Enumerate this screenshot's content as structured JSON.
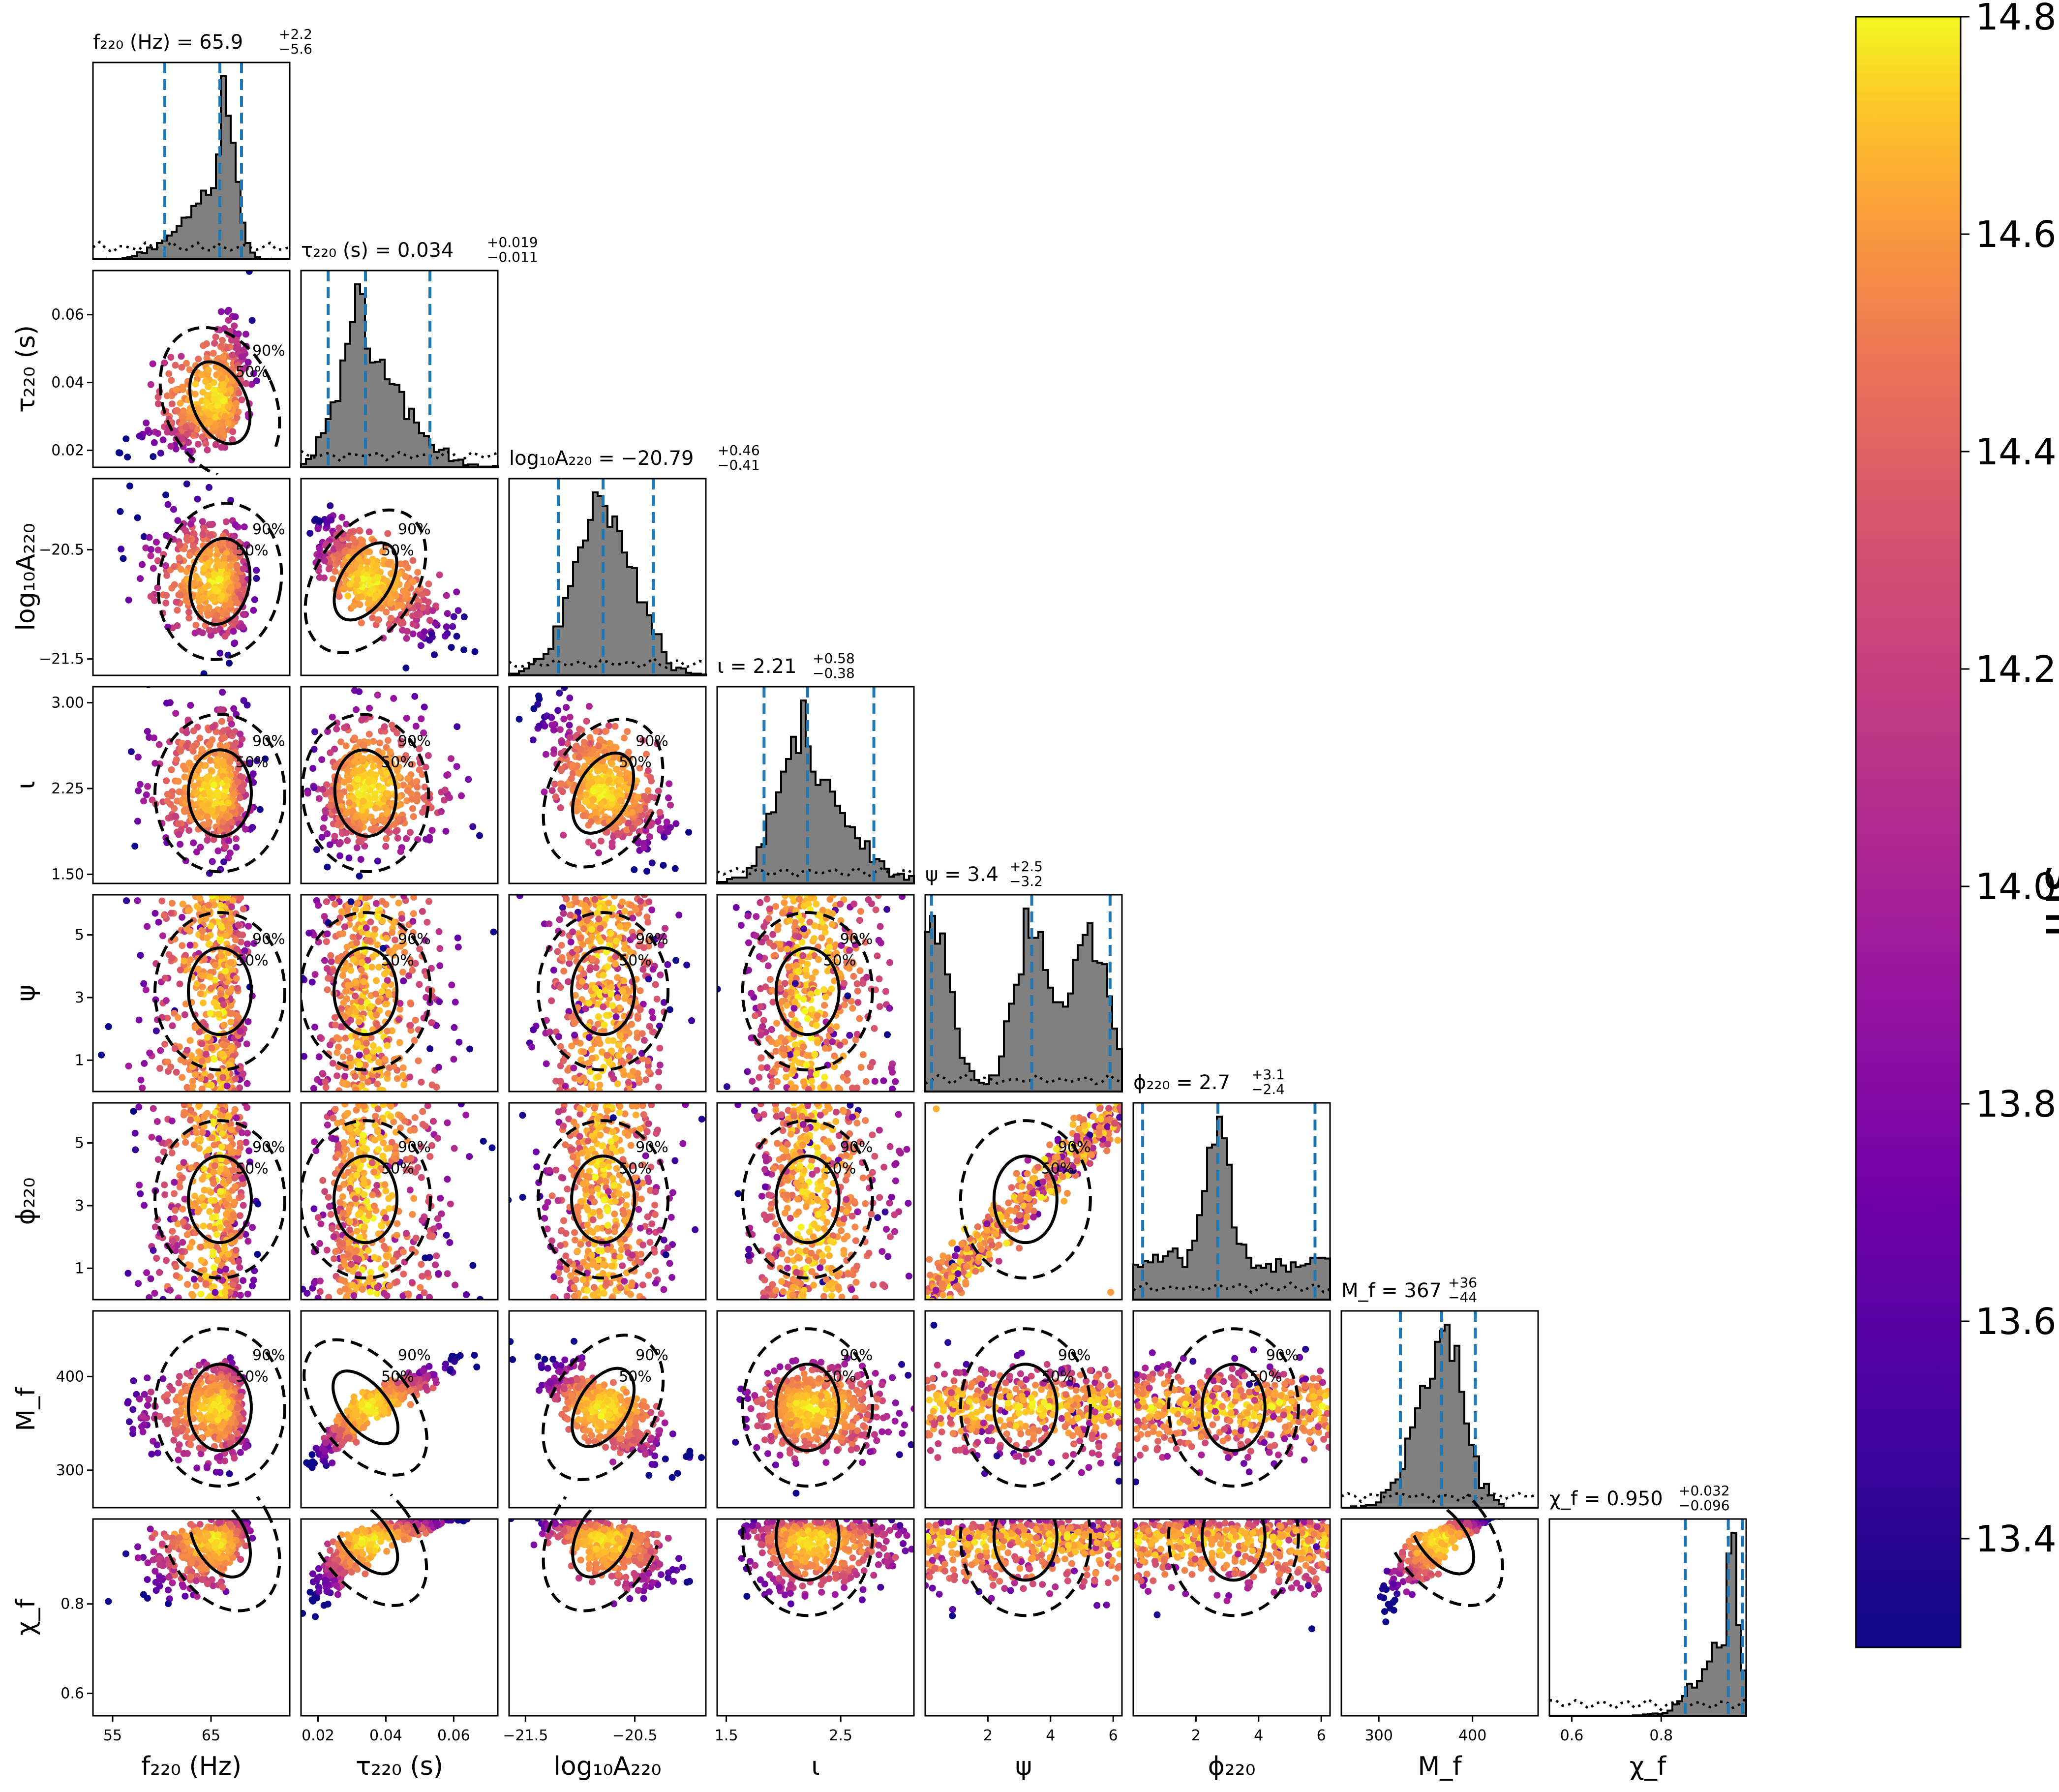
{
  "figure": {
    "colorbar_label": "snr"
  },
  "chart_data": {
    "type": "scatter",
    "subtype": "corner-plot",
    "density_colormap": "plasma",
    "grid": false,
    "params": [
      {
        "key": "f220",
        "label": "f₂₂₀ (Hz)",
        "title": "f₂₂₀ (Hz) = 65.9",
        "median": 65.9,
        "plus": "+2.2",
        "minus": "−5.6",
        "range": [
          53.0,
          73.0
        ],
        "ticks": [
          55,
          65
        ],
        "tick_labels": [
          "55",
          "65"
        ]
      },
      {
        "key": "tau220",
        "label": "τ₂₂₀ (s)",
        "title": "τ₂₂₀ (s) = 0.034",
        "median": 0.034,
        "plus": "+0.019",
        "minus": "−0.011",
        "range": [
          0.015,
          0.073
        ],
        "ticks": [
          0.02,
          0.04,
          0.06
        ],
        "tick_labels": [
          "0.02",
          "0.04",
          "0.06"
        ]
      },
      {
        "key": "logA220",
        "label": "log₁₀A₂₂₀",
        "title": "log₁₀A₂₂₀ = −20.79",
        "median": -20.79,
        "plus": "+0.46",
        "minus": "−0.41",
        "range": [
          -21.65,
          -19.85
        ],
        "ticks": [
          -21.5,
          -20.5
        ],
        "tick_labels": [
          "−21.5",
          "−20.5"
        ]
      },
      {
        "key": "iota",
        "label": "ι",
        "title": "ι = 2.21",
        "median": 2.21,
        "plus": "+0.58",
        "minus": "−0.38",
        "range": [
          1.42,
          3.14
        ],
        "ticks": [
          1.5,
          2.25,
          3.0
        ],
        "tick_labels": [
          "1.50",
          "2.25",
          "3.00"
        ],
        "xtick_labels": [
          "1.5",
          "2.5"
        ],
        "xticks": [
          1.5,
          2.5
        ]
      },
      {
        "key": "psi",
        "label": "ψ",
        "title": "ψ = 3.4",
        "median": 3.4,
        "plus": "+2.5",
        "minus": "−3.2",
        "range": [
          0.0,
          6.28
        ],
        "ticks": [
          1,
          3,
          5
        ],
        "tick_labels": [
          "1",
          "3",
          "5"
        ],
        "xticks": [
          2,
          4,
          6
        ],
        "xtick_labels": [
          "2",
          "4",
          "6"
        ]
      },
      {
        "key": "phi220",
        "label": "ϕ₂₂₀",
        "title": "ϕ₂₂₀ = 2.7",
        "median": 2.7,
        "plus": "+3.1",
        "minus": "−2.4",
        "range": [
          0.0,
          6.28
        ],
        "ticks": [
          1,
          3,
          5
        ],
        "tick_labels": [
          "1",
          "3",
          "5"
        ],
        "xticks": [
          2,
          4,
          6
        ],
        "xtick_labels": [
          "2",
          "4",
          "6"
        ]
      },
      {
        "key": "Mf",
        "label": "M_f",
        "title": "M_f = 367",
        "median": 367,
        "plus": "+36",
        "minus": "−44",
        "range": [
          260,
          470
        ],
        "ticks": [
          300,
          400
        ],
        "tick_labels": [
          "300",
          "400"
        ]
      },
      {
        "key": "chif",
        "label": "χ_f",
        "title": "χ_f = 0.950",
        "median": 0.95,
        "plus": "+0.032",
        "minus": "−0.096",
        "range": [
          0.55,
          0.99
        ],
        "ticks": [
          0.6,
          0.8
        ],
        "tick_labels": [
          "0.6",
          "0.8"
        ]
      }
    ],
    "contour_labels": [
      "50%",
      "90%"
    ],
    "colorbar": {
      "label": "snr",
      "min": 13.3,
      "max": 14.8,
      "ticks": [
        13.4,
        13.6,
        13.8,
        14.0,
        14.2,
        14.4,
        14.6,
        14.8
      ],
      "tick_labels": [
        "13.4",
        "13.6",
        "13.8",
        "14.0",
        "14.2",
        "14.4",
        "14.6",
        "14.8"
      ]
    }
  }
}
